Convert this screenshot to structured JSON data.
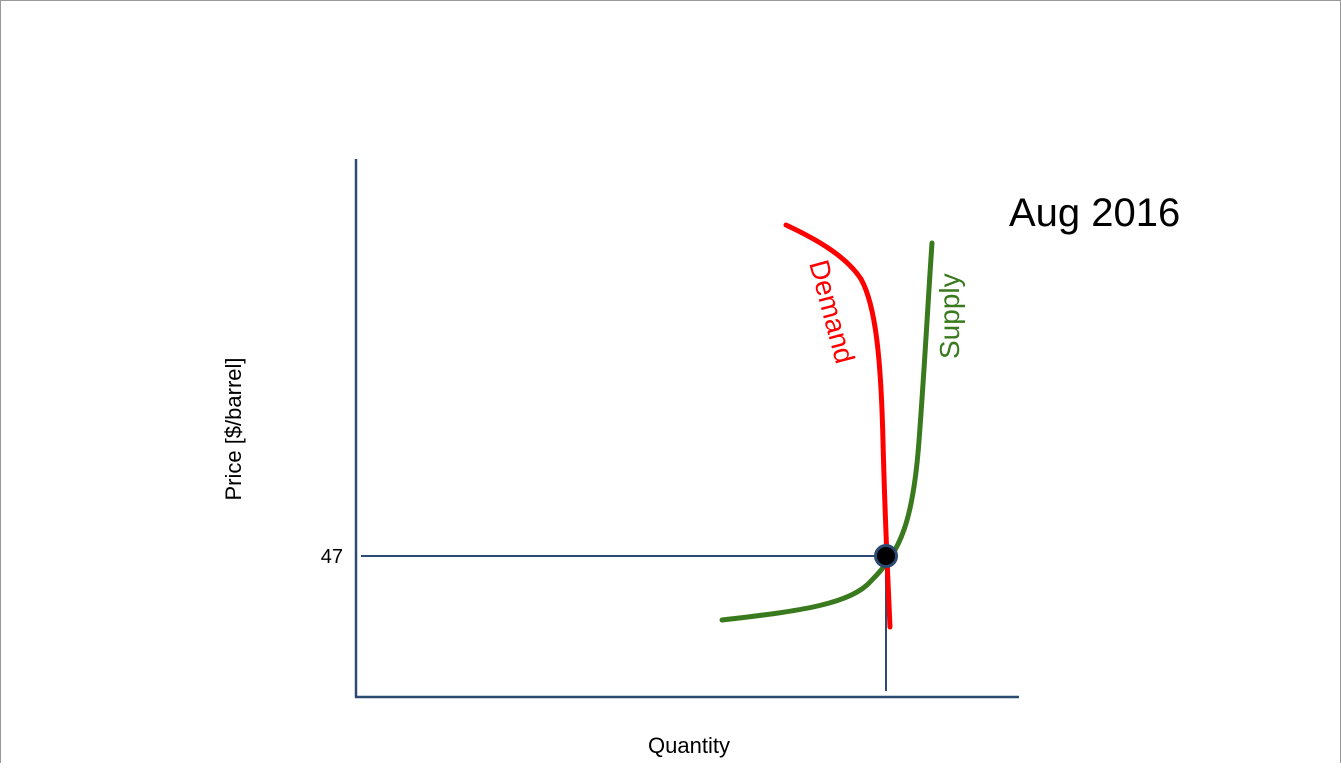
{
  "title": "Aug 2016",
  "axes": {
    "x_label": "Quantity",
    "y_label": "Price [$/barrel]"
  },
  "equilibrium": {
    "price_label": "47"
  },
  "curves": {
    "demand": {
      "label": "Demand",
      "color": "#ff0000"
    },
    "supply": {
      "label": "Supply",
      "color": "#3a7a1e"
    }
  },
  "colors": {
    "axis": "#2c4a72",
    "guide": "#2c4a72",
    "point_fill": "#000000",
    "point_stroke": "#2c4a72"
  }
}
